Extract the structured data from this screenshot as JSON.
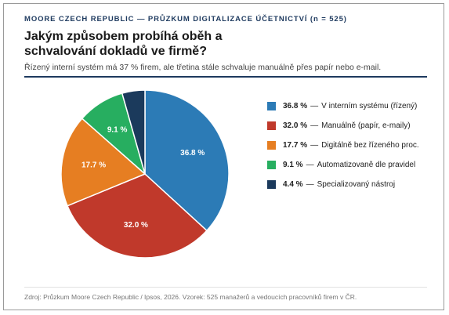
{
  "header": {
    "kicker": "MOORE CZECH REPUBLIC — PRŮZKUM DIGITALIZACE ÚČETNICTVÍ (n = 525)",
    "title": "Jakým způsobem probíhá oběh a schvalování dokladů ve firmě?",
    "subtitle": "Řízený interní systém má 37 % firem, ale třetina stále schvaluje manuálně přes papír nebo e-mail."
  },
  "chart_data": {
    "type": "pie",
    "title": "Jakým způsobem probíhá oběh a schvalování dokladů ve firmě?",
    "slices": [
      {
        "label": "V interním systému (řízený)",
        "value": 36.8,
        "display": "36.8 %",
        "color": "#2c7bb6"
      },
      {
        "label": "Manuálně (papír, e-maily)",
        "value": 32.0,
        "display": "32.0 %",
        "color": "#c0392b"
      },
      {
        "label": "Digitálně bez řízeného proc.",
        "value": 17.7,
        "display": "17.7 %",
        "color": "#e67e22"
      },
      {
        "label": "Automatizovaně dle pravidel",
        "value": 9.1,
        "display": "9.1 %",
        "color": "#27ae60"
      },
      {
        "label": "Specializovaný nástroj",
        "value": 4.4,
        "display": "4.4 %",
        "color": "#1b3a5c"
      }
    ],
    "legend_position": "right"
  },
  "legend_separator": "—",
  "footer": {
    "source": "Zdroj: Průzkum Moore Czech Republic / Ipsos, 2026. Vzorek: 525 manažerů a vedoucích pracovníků firem v ČR."
  }
}
